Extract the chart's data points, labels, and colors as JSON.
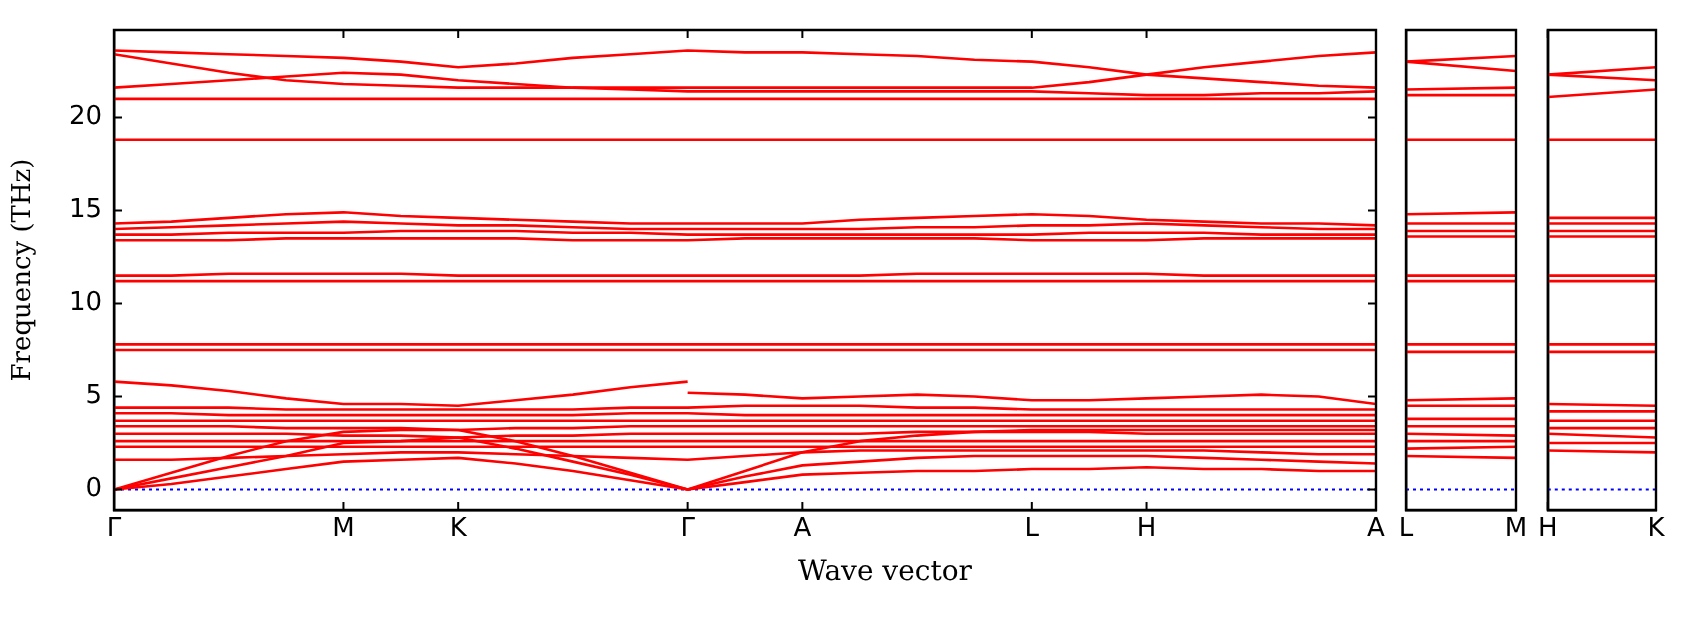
{
  "chart_data": [
    {
      "type": "line",
      "ylabel": "Frequency (THz)",
      "xlabel": "Wave vector",
      "categories": [
        "Γ",
        null,
        null,
        null,
        "M",
        null,
        "K",
        null,
        null,
        null,
        "Γ",
        null,
        "A",
        null,
        null,
        null,
        "L",
        null,
        "H",
        null,
        null,
        null,
        "A"
      ],
      "ylim": [
        -1.1,
        24.7
      ],
      "yticks": [
        0,
        5,
        10,
        15,
        20
      ],
      "ref_lines": [
        {
          "axis": "y",
          "value": 0,
          "color": "#0000ff",
          "line_style": "dotted"
        }
      ],
      "series": [
        {
          "color": "#ff0000",
          "values": [
            23.6,
            23.5,
            23.4,
            23.3,
            23.2,
            23.0,
            22.7,
            22.9,
            23.2,
            23.4,
            23.6,
            23.5,
            23.5,
            23.4,
            23.3,
            23.1,
            23.0,
            22.7,
            22.3,
            22.1,
            21.9,
            21.7,
            21.6
          ]
        },
        {
          "color": "#ff0000",
          "values": [
            23.4,
            22.9,
            22.4,
            22.0,
            21.8,
            21.7,
            21.6,
            21.6,
            21.6,
            21.6,
            21.6,
            21.6,
            21.6,
            21.6,
            21.6,
            21.6,
            21.6,
            21.9,
            22.3,
            22.7,
            23.0,
            23.3,
            23.5
          ]
        },
        {
          "color": "#ff0000",
          "values": [
            21.6,
            21.8,
            22.0,
            22.2,
            22.4,
            22.3,
            22.0,
            21.8,
            21.6,
            21.5,
            21.4,
            21.4,
            21.4,
            21.4,
            21.4,
            21.4,
            21.4,
            21.3,
            21.2,
            21.2,
            21.3,
            21.3,
            21.4
          ]
        },
        {
          "color": "#ff0000",
          "values": [
            21.0,
            21.0,
            21.0,
            21.0,
            21.0,
            21.0,
            21.0,
            21.0,
            21.0,
            21.0,
            21.0,
            21.0,
            21.0,
            21.0,
            21.0,
            21.0,
            21.0,
            21.0,
            21.0,
            21.0,
            21.0,
            21.0,
            21.0
          ]
        },
        {
          "color": "#ff0000",
          "values": [
            18.8,
            18.8,
            18.8,
            18.8,
            18.8,
            18.8,
            18.8,
            18.8,
            18.8,
            18.8,
            18.8,
            18.8,
            18.8,
            18.8,
            18.8,
            18.8,
            18.8,
            18.8,
            18.8,
            18.8,
            18.8,
            18.8,
            18.8
          ]
        },
        {
          "color": "#ff0000",
          "values": [
            14.3,
            14.4,
            14.6,
            14.8,
            14.9,
            14.7,
            14.6,
            14.5,
            14.4,
            14.3,
            14.3,
            14.3,
            14.3,
            14.5,
            14.6,
            14.7,
            14.8,
            14.7,
            14.5,
            14.4,
            14.3,
            14.3,
            14.2
          ]
        },
        {
          "color": "#ff0000",
          "values": [
            14.0,
            14.1,
            14.2,
            14.3,
            14.4,
            14.3,
            14.2,
            14.2,
            14.1,
            14.0,
            14.0,
            14.0,
            14.0,
            14.0,
            14.1,
            14.1,
            14.2,
            14.2,
            14.3,
            14.2,
            14.1,
            14.0,
            14.0
          ]
        },
        {
          "color": "#ff0000",
          "values": [
            13.7,
            13.7,
            13.8,
            13.8,
            13.8,
            13.9,
            13.9,
            13.9,
            13.8,
            13.8,
            13.7,
            13.7,
            13.7,
            13.7,
            13.7,
            13.7,
            13.7,
            13.8,
            13.8,
            13.8,
            13.7,
            13.7,
            13.7
          ]
        },
        {
          "color": "#ff0000",
          "values": [
            13.4,
            13.4,
            13.4,
            13.5,
            13.5,
            13.5,
            13.5,
            13.5,
            13.4,
            13.4,
            13.4,
            13.5,
            13.5,
            13.5,
            13.5,
            13.5,
            13.4,
            13.4,
            13.4,
            13.5,
            13.5,
            13.5,
            13.5
          ]
        },
        {
          "color": "#ff0000",
          "values": [
            11.5,
            11.5,
            11.6,
            11.6,
            11.6,
            11.6,
            11.5,
            11.5,
            11.5,
            11.5,
            11.5,
            11.5,
            11.5,
            11.5,
            11.6,
            11.6,
            11.6,
            11.6,
            11.6,
            11.5,
            11.5,
            11.5,
            11.5
          ]
        },
        {
          "color": "#ff0000",
          "values": [
            11.2,
            11.2,
            11.2,
            11.2,
            11.2,
            11.2,
            11.2,
            11.2,
            11.2,
            11.2,
            11.2,
            11.2,
            11.2,
            11.2,
            11.2,
            11.2,
            11.2,
            11.2,
            11.2,
            11.2,
            11.2,
            11.2,
            11.2
          ]
        },
        {
          "color": "#ff0000",
          "values": [
            7.8,
            7.8,
            7.8,
            7.8,
            7.8,
            7.8,
            7.8,
            7.8,
            7.8,
            7.8,
            7.8,
            7.8,
            7.8,
            7.8,
            7.8,
            7.8,
            7.8,
            7.8,
            7.8,
            7.8,
            7.8,
            7.8,
            7.8
          ]
        },
        {
          "color": "#ff0000",
          "values": [
            7.5,
            7.5,
            7.5,
            7.5,
            7.5,
            7.5,
            7.5,
            7.5,
            7.5,
            7.5,
            7.5,
            7.5,
            7.5,
            7.5,
            7.5,
            7.5,
            7.5,
            7.5,
            7.5,
            7.5,
            7.5,
            7.5,
            7.5
          ]
        },
        {
          "color": "#ff0000",
          "values": [
            5.8,
            5.6,
            5.3,
            4.9,
            4.6,
            4.6,
            4.5,
            4.8,
            5.1,
            5.5,
            5.8,
            null,
            null,
            null,
            null,
            null,
            null,
            null,
            null,
            null,
            null,
            null,
            null
          ]
        },
        {
          "color": "#ff0000",
          "values": [
            null,
            null,
            null,
            null,
            null,
            null,
            null,
            null,
            null,
            null,
            5.2,
            5.1,
            4.9,
            5.0,
            5.1,
            5.0,
            4.8,
            4.8,
            4.9,
            5.0,
            5.1,
            5.0,
            4.6
          ]
        },
        {
          "color": "#ff0000",
          "values": [
            4.4,
            4.4,
            4.4,
            4.3,
            4.3,
            4.3,
            4.3,
            4.3,
            4.3,
            4.4,
            4.4,
            4.5,
            4.5,
            4.5,
            4.4,
            4.4,
            4.3,
            4.3,
            4.3,
            4.3,
            4.3,
            4.3,
            4.3
          ]
        },
        {
          "color": "#ff0000",
          "values": [
            4.1,
            4.1,
            4.0,
            4.0,
            4.0,
            4.0,
            4.0,
            4.0,
            4.0,
            4.1,
            4.1,
            4.0,
            4.0,
            4.0,
            4.0,
            4.0,
            4.0,
            4.0,
            4.0,
            4.0,
            4.0,
            4.0,
            4.0
          ]
        },
        {
          "color": "#ff0000",
          "values": [
            3.7,
            3.7,
            3.7,
            3.7,
            3.7,
            3.7,
            3.7,
            3.7,
            3.7,
            3.7,
            3.7,
            3.7,
            3.7,
            3.7,
            3.7,
            3.7,
            3.7,
            3.7,
            3.7,
            3.7,
            3.7,
            3.7,
            3.7
          ]
        },
        {
          "color": "#ff0000",
          "values": [
            3.4,
            3.4,
            3.4,
            3.3,
            3.3,
            3.3,
            3.2,
            3.3,
            3.3,
            3.4,
            3.4,
            3.4,
            3.4,
            3.4,
            3.4,
            3.4,
            3.4,
            3.4,
            3.4,
            3.4,
            3.4,
            3.4,
            3.4
          ]
        },
        {
          "color": "#ff0000",
          "values": [
            3.0,
            3.0,
            3.0,
            3.0,
            2.9,
            2.9,
            2.8,
            2.9,
            2.9,
            3.0,
            3.0,
            3.0,
            3.0,
            3.0,
            3.1,
            3.1,
            3.1,
            3.1,
            3.0,
            3.0,
            3.0,
            3.0,
            3.0
          ]
        },
        {
          "color": "#ff0000",
          "values": [
            2.6,
            2.6,
            2.6,
            2.6,
            2.6,
            2.6,
            2.6,
            2.6,
            2.6,
            2.6,
            2.6,
            2.6,
            2.6,
            2.6,
            2.6,
            2.6,
            2.6,
            2.6,
            2.6,
            2.6,
            2.6,
            2.6,
            2.6
          ]
        },
        {
          "color": "#ff0000",
          "values": [
            2.3,
            2.3,
            2.3,
            2.3,
            2.3,
            2.3,
            2.3,
            2.3,
            2.3,
            2.3,
            2.3,
            2.3,
            2.3,
            2.3,
            2.3,
            2.3,
            2.3,
            2.3,
            2.3,
            2.3,
            2.3,
            2.3,
            2.3
          ]
        },
        {
          "color": "#ff0000",
          "values": [
            1.6,
            1.6,
            1.7,
            1.8,
            1.9,
            2.0,
            2.0,
            1.9,
            1.8,
            1.7,
            1.6,
            1.8,
            2.0,
            2.1,
            2.1,
            2.1,
            2.1,
            2.1,
            2.1,
            2.1,
            2.0,
            1.9,
            1.9
          ]
        },
        {
          "color": "#ff0000",
          "values": [
            0,
            0.6,
            1.2,
            1.8,
            2.5,
            2.6,
            2.8,
            2.2,
            1.5,
            0.8,
            0,
            0.4,
            0.8,
            0.9,
            1.0,
            1.0,
            1.1,
            1.1,
            1.2,
            1.1,
            1.1,
            1.0,
            1.0
          ]
        },
        {
          "color": "#ff0000",
          "values": [
            0,
            0.3,
            0.7,
            1.1,
            1.5,
            1.6,
            1.7,
            1.4,
            1.0,
            0.5,
            0,
            0.7,
            1.3,
            1.5,
            1.7,
            1.8,
            1.8,
            1.8,
            1.8,
            1.7,
            1.6,
            1.5,
            1.4
          ]
        },
        {
          "color": "#ff0000",
          "values": [
            0,
            0.9,
            1.8,
            2.6,
            3.1,
            3.2,
            3.2,
            2.6,
            1.8,
            0.9,
            0,
            1.0,
            2.0,
            2.6,
            2.9,
            3.1,
            3.2,
            3.2,
            3.2,
            3.2,
            3.2,
            3.2,
            3.2
          ]
        }
      ]
    },
    {
      "type": "line",
      "categories": [
        "L",
        "M"
      ],
      "ylim": [
        -1.1,
        24.7
      ],
      "tick_labels": "x",
      "ref_lines": [
        {
          "axis": "y",
          "value": 0,
          "color": "#0000ff",
          "line_style": "dotted"
        }
      ],
      "series": [
        {
          "color": "#ff0000",
          "values": [
            23.0,
            23.3
          ]
        },
        {
          "color": "#ff0000",
          "values": [
            23.0,
            22.5
          ]
        },
        {
          "color": "#ff0000",
          "values": [
            21.5,
            21.6
          ]
        },
        {
          "color": "#ff0000",
          "values": [
            21.2,
            21.2
          ]
        },
        {
          "color": "#ff0000",
          "values": [
            18.8,
            18.8
          ]
        },
        {
          "color": "#ff0000",
          "values": [
            14.8,
            14.9
          ]
        },
        {
          "color": "#ff0000",
          "values": [
            14.3,
            14.3
          ]
        },
        {
          "color": "#ff0000",
          "values": [
            13.9,
            13.9
          ]
        },
        {
          "color": "#ff0000",
          "values": [
            13.6,
            13.6
          ]
        },
        {
          "color": "#ff0000",
          "values": [
            11.5,
            11.5
          ]
        },
        {
          "color": "#ff0000",
          "values": [
            11.2,
            11.2
          ]
        },
        {
          "color": "#ff0000",
          "values": [
            7.8,
            7.8
          ]
        },
        {
          "color": "#ff0000",
          "values": [
            7.4,
            7.4
          ]
        },
        {
          "color": "#ff0000",
          "values": [
            4.8,
            4.9
          ]
        },
        {
          "color": "#ff0000",
          "values": [
            4.5,
            4.5
          ]
        },
        {
          "color": "#ff0000",
          "values": [
            3.8,
            3.8
          ]
        },
        {
          "color": "#ff0000",
          "values": [
            3.4,
            3.4
          ]
        },
        {
          "color": "#ff0000",
          "values": [
            3.0,
            2.9
          ]
        },
        {
          "color": "#ff0000",
          "values": [
            2.6,
            2.6
          ]
        },
        {
          "color": "#ff0000",
          "values": [
            2.2,
            2.3
          ]
        },
        {
          "color": "#ff0000",
          "values": [
            1.8,
            1.7
          ]
        }
      ]
    },
    {
      "type": "line",
      "categories": [
        "H",
        "K"
      ],
      "ylim": [
        -1.1,
        24.7
      ],
      "tick_labels": "x",
      "ref_lines": [
        {
          "axis": "y",
          "value": 0,
          "color": "#0000ff",
          "line_style": "dotted"
        }
      ],
      "series": [
        {
          "color": "#ff0000",
          "values": [
            22.3,
            22.7
          ]
        },
        {
          "color": "#ff0000",
          "values": [
            22.3,
            22.0
          ]
        },
        {
          "color": "#ff0000",
          "values": [
            21.1,
            21.5
          ]
        },
        {
          "color": "#ff0000",
          "values": [
            18.8,
            18.8
          ]
        },
        {
          "color": "#ff0000",
          "values": [
            14.6,
            14.6
          ]
        },
        {
          "color": "#ff0000",
          "values": [
            14.3,
            14.3
          ]
        },
        {
          "color": "#ff0000",
          "values": [
            13.9,
            13.9
          ]
        },
        {
          "color": "#ff0000",
          "values": [
            13.6,
            13.6
          ]
        },
        {
          "color": "#ff0000",
          "values": [
            11.5,
            11.5
          ]
        },
        {
          "color": "#ff0000",
          "values": [
            11.2,
            11.2
          ]
        },
        {
          "color": "#ff0000",
          "values": [
            7.8,
            7.8
          ]
        },
        {
          "color": "#ff0000",
          "values": [
            7.4,
            7.4
          ]
        },
        {
          "color": "#ff0000",
          "values": [
            4.6,
            4.5
          ]
        },
        {
          "color": "#ff0000",
          "values": [
            4.2,
            4.2
          ]
        },
        {
          "color": "#ff0000",
          "values": [
            3.7,
            3.7
          ]
        },
        {
          "color": "#ff0000",
          "values": [
            3.3,
            3.3
          ]
        },
        {
          "color": "#ff0000",
          "values": [
            3.0,
            2.8
          ]
        },
        {
          "color": "#ff0000",
          "values": [
            2.5,
            2.5
          ]
        },
        {
          "color": "#ff0000",
          "values": [
            2.1,
            2.0
          ]
        }
      ]
    }
  ]
}
